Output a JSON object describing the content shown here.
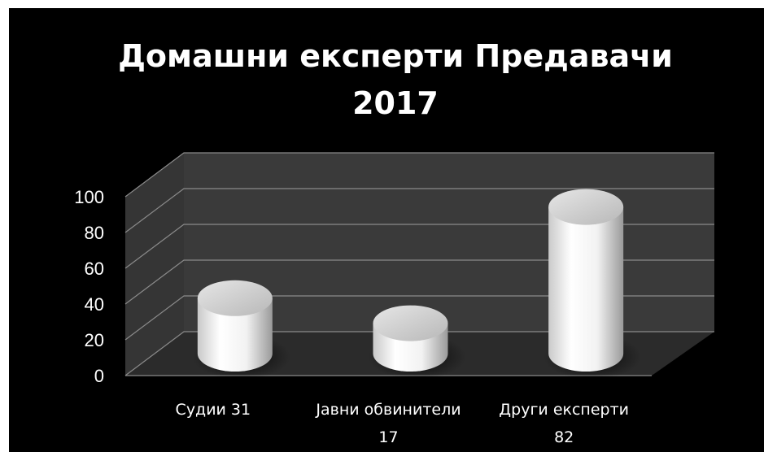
{
  "chart_data": {
    "type": "bar",
    "title": [
      "Домашни експерти Предавачи",
      "2017"
    ],
    "categories": [
      [
        "Судии 31"
      ],
      [
        "Јавни обвинители",
        "17"
      ],
      [
        "Други експерти",
        "82"
      ]
    ],
    "values": [
      31,
      17,
      82
    ],
    "ylim": [
      0,
      100
    ],
    "yticks": [
      0,
      20,
      40,
      60,
      80,
      100
    ],
    "grid": true,
    "legend": "none",
    "style": "3d-cylinder",
    "colors": {
      "background": "#000000",
      "walls": "#3a3a3a",
      "floor": "#2b2b2b",
      "grid": "#8a8a8a",
      "bars": "#ffffff",
      "text": "#ffffff"
    }
  }
}
